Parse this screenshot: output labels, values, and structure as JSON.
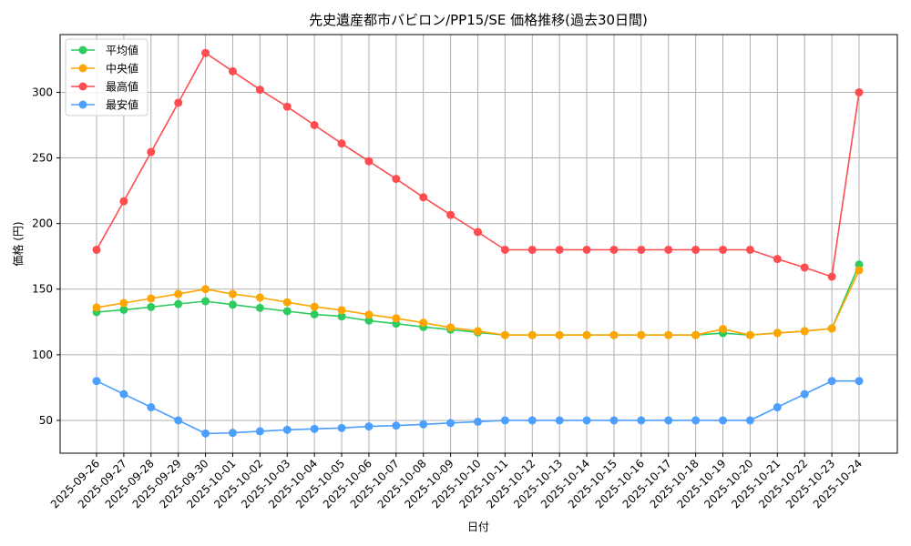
{
  "chart_data": {
    "type": "line",
    "title": "先史遺産都市バビロン/PP15/SE 価格推移(過去30日間)",
    "xlabel": "日付",
    "ylabel": "価格 (円)",
    "ylim": [
      25,
      344
    ],
    "yticks": [
      50,
      100,
      150,
      200,
      250,
      300
    ],
    "grid": true,
    "legend_position": "upper left",
    "x": [
      "2025-09-26",
      "2025-09-27",
      "2025-09-28",
      "2025-09-29",
      "2025-09-30",
      "2025-10-01",
      "2025-10-02",
      "2025-10-03",
      "2025-10-04",
      "2025-10-05",
      "2025-10-06",
      "2025-10-07",
      "2025-10-08",
      "2025-10-09",
      "2025-10-10",
      "2025-10-11",
      "2025-10-12",
      "2025-10-13",
      "2025-10-14",
      "2025-10-15",
      "2025-10-16",
      "2025-10-17",
      "2025-10-18",
      "2025-10-19",
      "2025-10-20",
      "2025-10-21",
      "2025-10-22",
      "2025-10-23",
      "2025-10-24"
    ],
    "series": [
      {
        "name": "平均値",
        "color": "#2ecc5f",
        "values": [
          132.5,
          134.3,
          136.4,
          138.7,
          140.8,
          138.2,
          135.7,
          133.2,
          130.8,
          129.2,
          126.0,
          123.7,
          121.2,
          119.2,
          117.0,
          115,
          115,
          115,
          115,
          115,
          115,
          115,
          115,
          116.5,
          115,
          116.6,
          118,
          120,
          168.7
        ]
      },
      {
        "name": "中央値",
        "color": "#ffa500",
        "values": [
          136,
          139.4,
          142.9,
          146.3,
          150,
          146.3,
          143.6,
          140,
          136.6,
          134,
          130.6,
          127.8,
          124.4,
          120.8,
          118,
          115,
          115,
          115,
          115,
          115,
          115,
          115,
          115,
          119.6,
          115,
          116.6,
          118,
          120,
          164.4
        ]
      },
      {
        "name": "最高値",
        "color": "#ff4d4f",
        "values": [
          180,
          217,
          254.5,
          292,
          330,
          316,
          302,
          289,
          275,
          261,
          247.5,
          234,
          220,
          206.6,
          193.5,
          180,
          180,
          180,
          180,
          180,
          180,
          180,
          180,
          180,
          180,
          173,
          166.5,
          159.5,
          300
        ]
      },
      {
        "name": "最安値",
        "color": "#4d9fff",
        "values": [
          80,
          70,
          60,
          50,
          40,
          40.5,
          41.7,
          42.8,
          43.5,
          44.2,
          45.4,
          46,
          47,
          48,
          49,
          50,
          50,
          50,
          50,
          50,
          50,
          50,
          50,
          50,
          50,
          60,
          70,
          80,
          80
        ]
      }
    ]
  }
}
